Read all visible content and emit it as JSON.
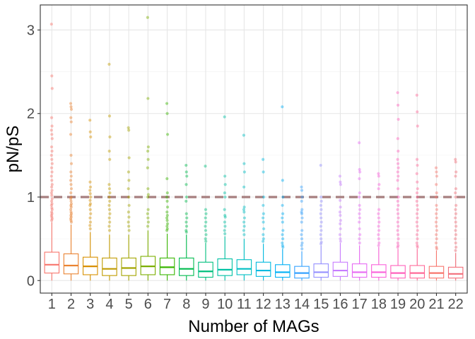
{
  "chart_data": {
    "type": "boxplot",
    "title": "",
    "xlabel": "Number of MAGs",
    "ylabel": "pN/pS",
    "categories": [
      "1",
      "2",
      "3",
      "4",
      "5",
      "6",
      "7",
      "8",
      "9",
      "10",
      "11",
      "12",
      "13",
      "14",
      "15",
      "16",
      "17",
      "18",
      "19",
      "20",
      "21",
      "22"
    ],
    "ylim": [
      -0.15,
      3.3
    ],
    "y_ticks": [
      0,
      1,
      2,
      3
    ],
    "reference_line": {
      "y": 1,
      "style": "dashed",
      "color": "#a67f7f"
    },
    "grid": true,
    "legend": "none",
    "colors": [
      "#F8766D",
      "#EA8331",
      "#D89000",
      "#C09B00",
      "#A3A500",
      "#7CAE00",
      "#39B600",
      "#00BB4E",
      "#00BF7D",
      "#00C1A3",
      "#00BFC4",
      "#00BAE0",
      "#00B0F6",
      "#35A2FF",
      "#9590FF",
      "#C77CFF",
      "#E76BF3",
      "#FA62DB",
      "#FF62BC",
      "#FF6A98",
      "#F8766D",
      "#F26E7A"
    ],
    "boxes": [
      {
        "q1": 0.09,
        "median": 0.19,
        "q3": 0.34,
        "lower": 0.0,
        "upper": 0.7
      },
      {
        "q1": 0.08,
        "median": 0.18,
        "q3": 0.32,
        "lower": 0.0,
        "upper": 0.67
      },
      {
        "q1": 0.07,
        "median": 0.17,
        "q3": 0.28,
        "lower": 0.0,
        "upper": 0.58
      },
      {
        "q1": 0.06,
        "median": 0.14,
        "q3": 0.27,
        "lower": 0.0,
        "upper": 0.55
      },
      {
        "q1": 0.06,
        "median": 0.15,
        "q3": 0.27,
        "lower": 0.0,
        "upper": 0.55
      },
      {
        "q1": 0.07,
        "median": 0.17,
        "q3": 0.29,
        "lower": 0.0,
        "upper": 0.6
      },
      {
        "q1": 0.07,
        "median": 0.16,
        "q3": 0.27,
        "lower": 0.0,
        "upper": 0.56
      },
      {
        "q1": 0.06,
        "median": 0.14,
        "q3": 0.27,
        "lower": 0.0,
        "upper": 0.55
      },
      {
        "q1": 0.04,
        "median": 0.11,
        "q3": 0.22,
        "lower": 0.0,
        "upper": 0.45
      },
      {
        "q1": 0.06,
        "median": 0.13,
        "q3": 0.26,
        "lower": 0.0,
        "upper": 0.53
      },
      {
        "q1": 0.07,
        "median": 0.14,
        "q3": 0.25,
        "lower": 0.0,
        "upper": 0.5
      },
      {
        "q1": 0.05,
        "median": 0.12,
        "q3": 0.22,
        "lower": 0.0,
        "upper": 0.44
      },
      {
        "q1": 0.04,
        "median": 0.1,
        "q3": 0.19,
        "lower": 0.0,
        "upper": 0.38
      },
      {
        "q1": 0.03,
        "median": 0.09,
        "q3": 0.17,
        "lower": 0.0,
        "upper": 0.35
      },
      {
        "q1": 0.04,
        "median": 0.1,
        "q3": 0.2,
        "lower": 0.0,
        "upper": 0.42
      },
      {
        "q1": 0.05,
        "median": 0.12,
        "q3": 0.22,
        "lower": 0.0,
        "upper": 0.45
      },
      {
        "q1": 0.04,
        "median": 0.1,
        "q3": 0.2,
        "lower": 0.0,
        "upper": 0.42
      },
      {
        "q1": 0.04,
        "median": 0.1,
        "q3": 0.19,
        "lower": 0.0,
        "upper": 0.4
      },
      {
        "q1": 0.03,
        "median": 0.09,
        "q3": 0.18,
        "lower": 0.0,
        "upper": 0.38
      },
      {
        "q1": 0.03,
        "median": 0.09,
        "q3": 0.18,
        "lower": 0.0,
        "upper": 0.38
      },
      {
        "q1": 0.03,
        "median": 0.09,
        "q3": 0.17,
        "lower": 0.0,
        "upper": 0.36
      },
      {
        "q1": 0.03,
        "median": 0.08,
        "q3": 0.16,
        "lower": 0.0,
        "upper": 0.33
      }
    ],
    "outliers": [
      [
        3.07,
        2.45,
        2.3,
        1.95,
        1.85,
        1.8,
        1.75,
        1.7,
        1.6,
        1.55,
        1.5,
        1.45,
        1.4,
        1.35,
        1.3,
        1.25,
        1.2,
        1.15,
        1.12,
        1.08,
        1.05,
        1.02,
        0.98,
        0.95,
        0.92,
        0.9,
        0.87,
        0.85,
        0.82,
        0.8,
        0.78,
        0.76,
        0.74,
        0.72
      ],
      [
        2.12,
        2.08,
        2.05,
        1.95,
        1.9,
        1.75,
        1.5,
        1.4,
        1.3,
        1.25,
        1.2,
        1.15,
        1.1,
        1.05,
        1.0,
        0.98,
        0.95,
        0.92,
        0.9,
        0.88,
        0.85,
        0.82,
        0.8,
        0.78,
        0.76,
        0.74,
        0.72,
        0.7
      ],
      [
        1.92,
        1.78,
        1.72,
        1.18,
        1.12,
        1.08,
        1.04,
        1.0,
        0.96,
        0.92,
        0.9,
        0.85,
        0.8,
        0.75,
        0.7,
        0.66,
        0.62
      ],
      [
        2.59,
        1.97,
        1.72,
        1.55,
        1.45,
        1.15,
        1.1,
        1.05,
        1.0,
        0.95,
        0.9,
        0.85,
        0.8,
        0.75,
        0.7,
        0.65,
        0.6
      ],
      [
        1.83,
        1.8,
        1.47,
        1.3,
        1.2,
        1.1,
        1.0,
        0.9,
        0.82,
        0.76,
        0.7,
        0.65,
        0.6
      ],
      [
        3.15,
        2.18,
        1.6,
        1.55,
        1.45,
        1.35,
        1.1,
        1.03,
        1.0,
        0.85,
        0.8,
        0.75,
        0.7,
        0.65
      ],
      [
        2.12,
        2.0,
        1.75,
        1.22,
        1.05,
        1.0,
        0.95,
        0.88,
        0.82,
        0.78,
        0.75,
        0.72,
        0.68,
        0.65,
        0.62,
        0.6
      ],
      [
        1.38,
        1.3,
        1.25,
        1.15,
        1.0,
        0.95,
        0.8,
        0.75,
        0.7,
        0.65,
        0.6,
        0.58
      ],
      [
        1.37,
        0.85,
        0.8,
        0.75,
        0.7,
        0.65,
        0.6,
        0.55,
        0.5,
        0.47
      ],
      [
        1.96,
        1.25,
        1.15,
        1.05,
        1.0,
        0.85,
        0.78,
        0.76,
        0.7,
        0.65,
        0.6,
        0.56
      ],
      [
        1.74,
        1.4,
        1.3,
        1.12,
        0.88,
        0.85,
        0.82,
        0.75,
        0.7,
        0.65,
        0.6,
        0.55
      ],
      [
        1.45,
        1.3,
        1.0,
        0.9,
        0.8,
        0.75,
        0.7,
        0.62,
        0.55,
        0.5,
        0.47
      ],
      [
        2.08,
        1.2,
        1.0,
        0.9,
        0.8,
        0.75,
        0.7,
        0.6,
        0.55,
        0.5,
        0.45,
        0.42,
        0.4
      ],
      [
        1.12,
        1.08,
        1.0,
        0.95,
        0.85,
        0.82,
        0.8,
        0.75,
        0.7,
        0.6,
        0.55,
        0.5,
        0.45,
        0.42,
        0.38
      ],
      [
        1.38,
        1.0,
        0.95,
        0.9,
        0.85,
        0.8,
        0.75,
        0.7,
        0.65,
        0.6,
        0.55,
        0.5,
        0.46,
        0.44
      ],
      [
        1.25,
        1.18,
        1.15,
        0.96,
        0.88,
        0.82,
        0.78,
        0.72,
        0.68,
        0.62,
        0.55,
        0.5,
        0.47
      ],
      [
        1.65,
        1.33,
        1.3,
        1.22,
        1.05,
        1.0,
        0.9,
        0.85,
        0.8,
        0.75,
        0.7,
        0.62,
        0.55,
        0.5,
        0.45
      ],
      [
        1.28,
        1.25,
        1.15,
        1.1,
        0.85,
        0.8,
        0.75,
        0.7,
        0.65,
        0.6,
        0.55,
        0.5,
        0.45,
        0.42
      ],
      [
        2.25,
        2.1,
        1.93,
        1.7,
        1.55,
        1.45,
        1.4,
        1.35,
        1.3,
        1.25,
        1.2,
        1.1,
        1.0,
        0.95,
        0.9,
        0.85,
        0.8,
        0.75,
        0.7,
        0.65,
        0.6,
        0.55,
        0.5,
        0.45,
        0.42,
        0.4
      ],
      [
        2.22,
        2.02,
        1.85,
        1.45,
        1.38,
        1.28,
        1.18,
        1.1,
        1.05,
        1.0,
        0.95,
        0.9,
        0.85,
        0.8,
        0.75,
        0.7,
        0.65,
        0.6,
        0.55,
        0.5,
        0.45,
        0.42,
        0.4
      ],
      [
        1.35,
        1.3,
        1.25,
        1.15,
        1.05,
        1.0,
        0.9,
        0.85,
        0.8,
        0.75,
        0.7,
        0.65,
        0.6,
        0.55,
        0.5,
        0.45,
        0.4,
        0.38
      ],
      [
        1.45,
        1.42,
        1.3,
        1.25,
        1.1,
        1.05,
        1.0,
        0.9,
        0.85,
        0.8,
        0.75,
        0.7,
        0.65,
        0.6,
        0.55,
        0.5,
        0.45,
        0.4,
        0.36
      ]
    ]
  }
}
